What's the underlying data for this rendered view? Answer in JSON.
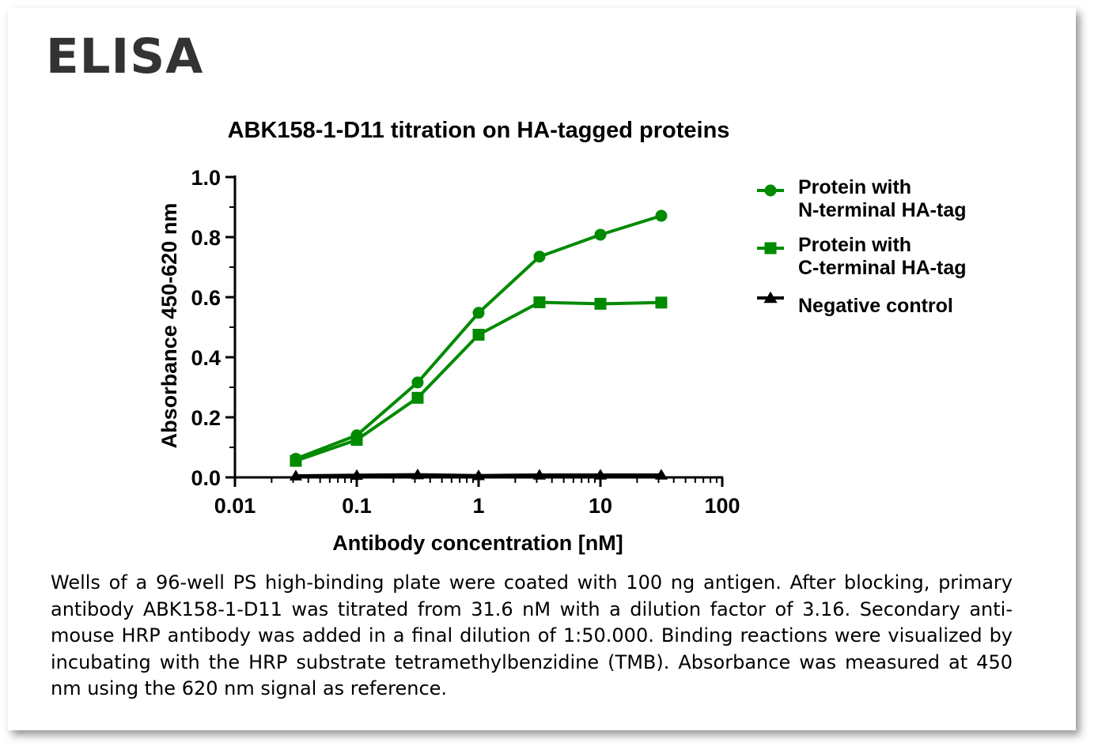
{
  "heading": "ELISA",
  "caption": "Wells of a 96-well PS high-binding plate were coated with 100 ng antigen. After blocking, primary antibody ABK158-1-D11 was titrated from 31.6 nM with a dilution factor of 3.16. Secondary anti-mouse HRP antibody was added in a final dilution of 1:50.000. Binding reactions were visualized by incubating with the HRP substrate tetramethylbenzidine (TMB). Absorbance was measured at 450 nm using the 620 nm signal as reference.",
  "colors": {
    "green": "#008a00",
    "black": "#000000",
    "heading": "#333333"
  },
  "chart_data": {
    "type": "line",
    "title": "ABK158-1-D11 titration on HA-tagged proteins",
    "xlabel": "Antibody concentration [nM]",
    "ylabel": "Absorbance 450-620 nm",
    "xscale": "log",
    "xlim": [
      0.01,
      100
    ],
    "ylim": [
      0,
      1.0
    ],
    "xticks": [
      "0.01",
      "0.1",
      "1",
      "10",
      "100"
    ],
    "yticks": [
      "0.0",
      "0.2",
      "0.4",
      "0.6",
      "0.8",
      "1.0"
    ],
    "legend_position": "right",
    "x": [
      0.0316,
      0.1,
      0.316,
      1,
      3.16,
      10,
      31.6
    ],
    "series": [
      {
        "name": "Protein with N-terminal HA-tag",
        "legend_lines": [
          "Protein with",
          "N-terminal HA-tag"
        ],
        "marker": "circle",
        "color": "#008a00",
        "values": [
          0.062,
          0.14,
          0.316,
          0.548,
          0.735,
          0.808,
          0.871
        ]
      },
      {
        "name": "Protein with C-terminal HA-tag",
        "legend_lines": [
          "Protein with",
          "C-terminal HA-tag"
        ],
        "marker": "square",
        "color": "#008a00",
        "values": [
          0.055,
          0.125,
          0.265,
          0.475,
          0.583,
          0.578,
          0.582
        ]
      },
      {
        "name": "Negative control",
        "legend_lines": [
          "Negative control"
        ],
        "marker": "triangle",
        "color": "#000000",
        "values": [
          0.005,
          0.007,
          0.009,
          0.006,
          0.008,
          0.008,
          0.008
        ]
      }
    ]
  }
}
